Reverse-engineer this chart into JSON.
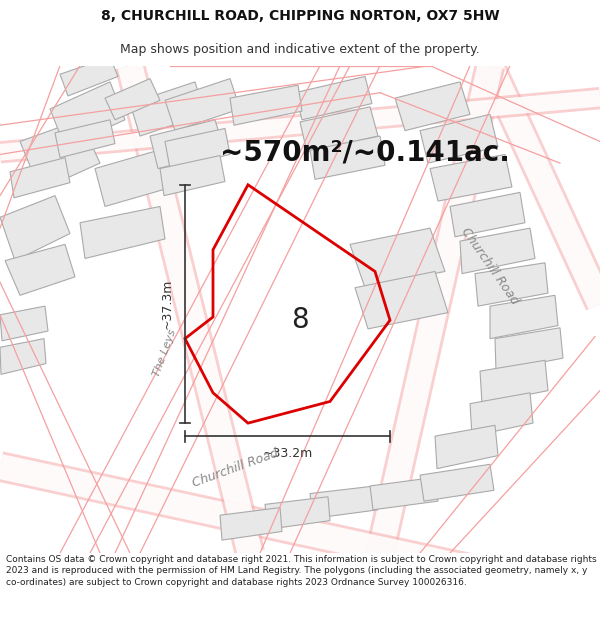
{
  "title_line1": "8, CHURCHILL ROAD, CHIPPING NORTON, OX7 5HW",
  "title_line2": "Map shows position and indicative extent of the property.",
  "area_text": "~570m²/~0.141ac.",
  "label_number": "8",
  "dim_width": "~33.2m",
  "dim_height": "~37.3m",
  "road_label_right": "Churchill Road",
  "road_label_bottom": "Churchill Road",
  "road_label_left": "The Leys",
  "footer_text": "Contains OS data © Crown copyright and database right 2021. This information is subject to Crown copyright and database rights 2023 and is reproduced with the permission of HM Land Registry. The polygons (including the associated geometry, namely x, y co-ordinates) are subject to Crown copyright and database rights 2023 Ordnance Survey 100026316.",
  "bg_color": "#ffffff",
  "map_bg": "#ffffff",
  "plot_fill": "#ffffff",
  "plot_edge": "#dd0000",
  "parcel_fill": "#e8e8e8",
  "parcel_edge": "#aaaaaa",
  "road_edge": "#f5a0a0",
  "dim_color": "#333333",
  "area_color": "#111111",
  "footer_color": "#222222",
  "road_label_color": "#888888",
  "title1_size": 10,
  "title2_size": 9,
  "area_size": 20,
  "footer_size": 6.5
}
